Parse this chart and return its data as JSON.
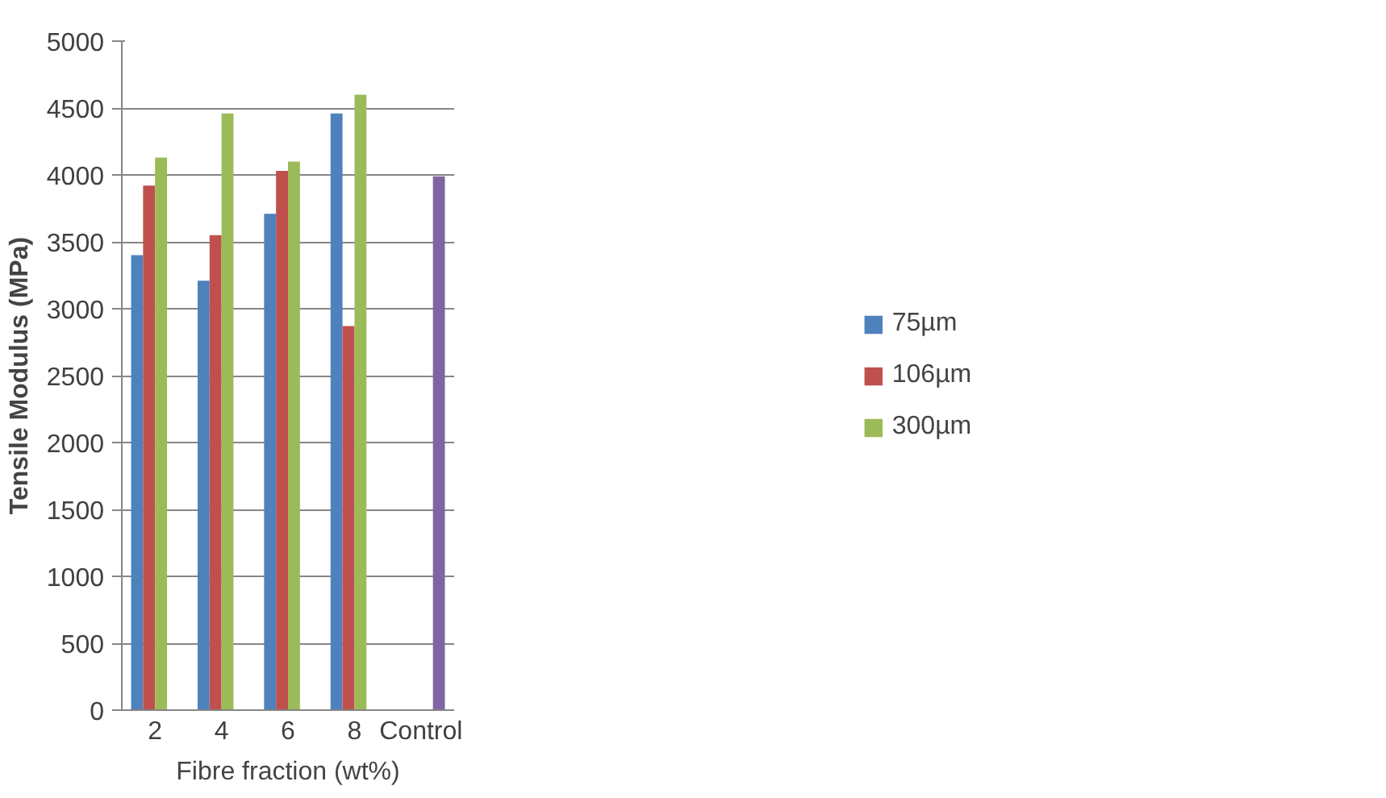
{
  "chart_data": {
    "type": "bar",
    "xlabel": "Fibre fraction (wt%)",
    "ylabel": "Tensile Modulus (MPa)",
    "categories": [
      "2",
      "4",
      "6",
      "8",
      "Control"
    ],
    "series": [
      {
        "name": "75µm",
        "color": "#4f81bd",
        "values": [
          3400,
          3210,
          3710,
          4460,
          null
        ]
      },
      {
        "name": "106µm",
        "color": "#c0504d",
        "values": [
          3920,
          3550,
          4030,
          2870,
          null
        ]
      },
      {
        "name": "300µm",
        "color": "#9bbb59",
        "values": [
          4130,
          4460,
          4100,
          4600,
          null
        ]
      },
      {
        "color": "#8064a2",
        "values": [
          null,
          null,
          null,
          null,
          3990
        ]
      }
    ],
    "ylim": [
      0,
      5000
    ],
    "yticks": [
      0,
      500,
      1000,
      1500,
      2000,
      2500,
      3000,
      3500,
      4000,
      4500,
      5000
    ],
    "grid": "y",
    "legend": "right"
  }
}
